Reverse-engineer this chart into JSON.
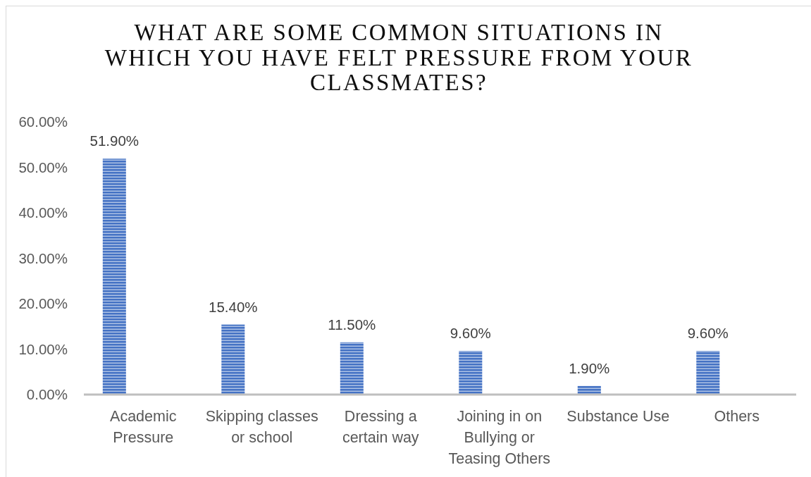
{
  "chart_data": {
    "type": "bar",
    "title": "WHAT ARE SOME COMMON SITUATIONS IN WHICH YOU HAVE FELT PRESSURE FROM YOUR CLASSMATES?",
    "categories": [
      "Academic Pressure",
      "Skipping classes or school",
      "Dressing a certain way",
      "Joining in on Bullying or Teasing Others",
      "Substance Use",
      "Others"
    ],
    "values": [
      51.9,
      15.4,
      11.5,
      9.6,
      1.9,
      9.6
    ],
    "value_labels": [
      "51.90%",
      "15.40%",
      "11.50%",
      "9.60%",
      "1.90%",
      "9.60%"
    ],
    "color": "#4472c4",
    "ylim": [
      0,
      60
    ],
    "yticks": [
      {
        "value": 0,
        "label": "0.00%"
      },
      {
        "value": 10,
        "label": "10.00%"
      },
      {
        "value": 20,
        "label": "20.00%"
      },
      {
        "value": 30,
        "label": "30.00%"
      },
      {
        "value": 40,
        "label": "40.00%"
      },
      {
        "value": 50,
        "label": "50.00%"
      },
      {
        "value": 60,
        "label": "60.00%"
      }
    ]
  }
}
